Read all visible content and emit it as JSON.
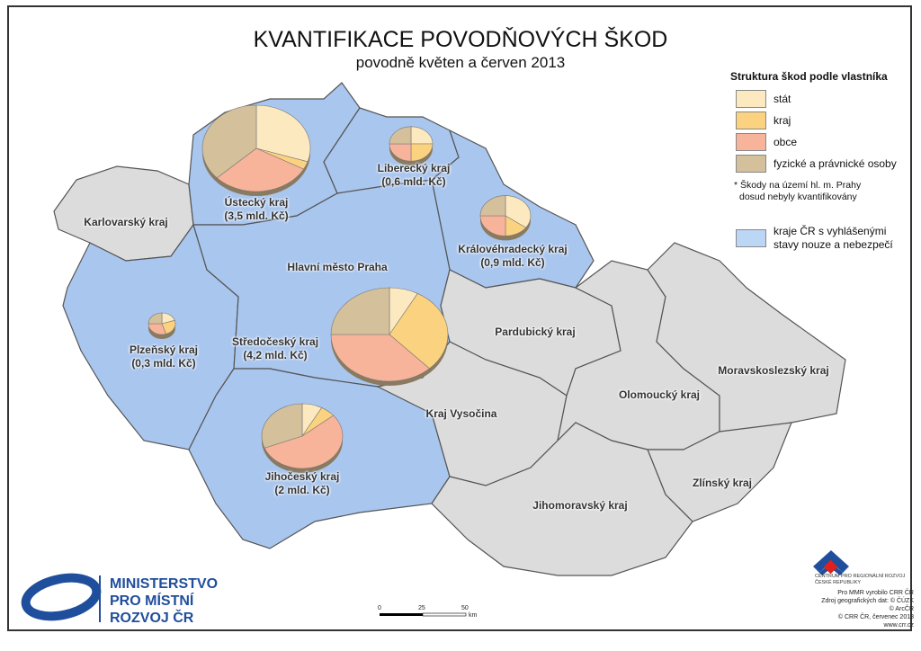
{
  "title": "KVANTIFIKACE POVODŇOVÝCH ŠKOD",
  "subtitle": "povodně květen a červen 2013",
  "colors": {
    "stat": "#fde9c0",
    "kraj": "#fbd27f",
    "obce": "#f8b49a",
    "fyzicke": "#d4c09b",
    "affected_region": "#a9c6ee",
    "other_region": "#dcdcdc",
    "brand": "#1f4e9c"
  },
  "legend": {
    "title": "Struktura škod podle vlastníka",
    "items": [
      {
        "label": "stát",
        "key": "stat"
      },
      {
        "label": "kraj",
        "key": "kraj"
      },
      {
        "label": "obce",
        "key": "obce"
      },
      {
        "label": "fyzické a právnické osoby",
        "key": "fyzicke"
      }
    ],
    "note1": "* Škody na území hl. m. Prahy",
    "note2": "dosud nebyly kvantifikovány",
    "affected1": "kraje ČR s vyhlášenými",
    "affected2": "stavy nouze a nebezpečí"
  },
  "regions": [
    {
      "name": "Karlovarský kraj",
      "affected": false
    },
    {
      "name": "Ústecký kraj",
      "damage": "(3,5 mld. Kč)",
      "affected": true,
      "shares": [
        30,
        3,
        30,
        37
      ]
    },
    {
      "name": "Liberecký kraj",
      "damage": "(0,6 mld. Kč)",
      "affected": true,
      "shares": [
        25,
        25,
        25,
        25
      ]
    },
    {
      "name": "Královéhradecký kraj",
      "damage": "(0,9 mld. Kč)",
      "affected": true,
      "shares": [
        35,
        15,
        25,
        25
      ]
    },
    {
      "name": "Hlavní město Praha",
      "affected": true
    },
    {
      "name": "Plzeňský kraj",
      "damage": "(0,3 mld. Kč)",
      "affected": true,
      "shares": [
        20,
        25,
        30,
        25
      ]
    },
    {
      "name": "Středočeský kraj",
      "damage": "(4,2 mld. Kč)",
      "affected": true,
      "shares": [
        8,
        30,
        37,
        25
      ]
    },
    {
      "name": "Jihočeský kraj",
      "damage": "(2 mld. Kč)",
      "affected": true,
      "shares": [
        8,
        6,
        55,
        31
      ]
    },
    {
      "name": "Pardubický kraj",
      "affected": false
    },
    {
      "name": "Kraj Vysočina",
      "affected": false
    },
    {
      "name": "Olomoucký kraj",
      "affected": false
    },
    {
      "name": "Moravskoslezský kraj",
      "affected": false
    },
    {
      "name": "Zlínský kraj",
      "affected": false
    },
    {
      "name": "Jihomoravský kraj",
      "affected": false
    }
  ],
  "scale": {
    "t0": "0",
    "t1": "25",
    "t2": "50",
    "unit": "km"
  },
  "ministry": {
    "l1": "MINISTERSTVO",
    "l2": "PRO MÍSTNÍ",
    "l3": "ROZVOJ ČR"
  },
  "crr": {
    "name1": "CENTRUM PRO REGIONÁLNÍ ROZVOJ",
    "name2": "ČESKÉ REPUBLIKY",
    "c1": "Pro MMR vyrobilo CRR ČR",
    "c2": "Zdroj geografických dat: © ČÚZK",
    "c3": "© ArcČR",
    "c4": "© CRR ČR, červenec 2013",
    "c5": "www.crr.cz"
  }
}
